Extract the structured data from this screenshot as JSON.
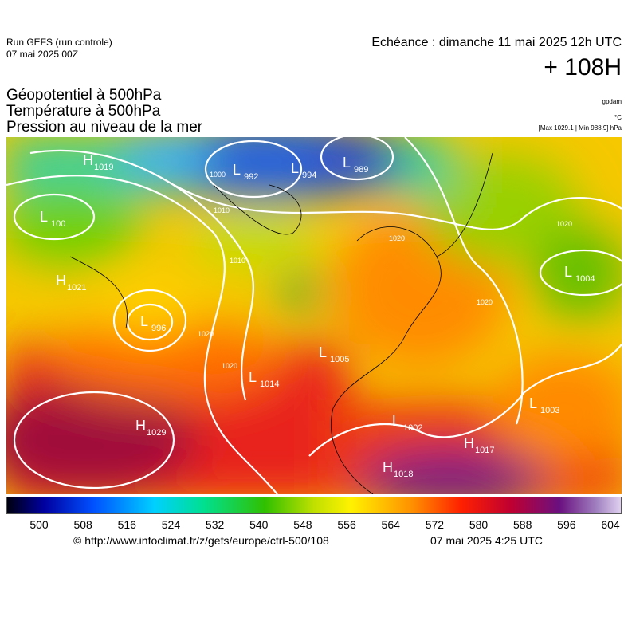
{
  "header": {
    "run": "Run GEFS (run controle)",
    "run_date": "07 mai 2025 00Z",
    "echeance": "Echéance : dimanche 11 mai 2025 12h UTC",
    "lead": "+ 108H",
    "titles": [
      "Géopotentiel à 500hPa",
      "Température à 500hPa",
      "Pression au niveau de la mer"
    ],
    "units": [
      "gpdam",
      "°C",
      "[Max 1029.1 | Min 988.9] hPa"
    ]
  },
  "map": {
    "centers": [
      {
        "letter": "H",
        "value": "1019"
      },
      {
        "letter": "L",
        "value": "992"
      },
      {
        "letter": "L",
        "value": "994"
      },
      {
        "letter": "L",
        "value": "989"
      },
      {
        "letter": "L",
        "value": "100"
      },
      {
        "letter": "H",
        "value": "1021"
      },
      {
        "letter": "L",
        "value": "996"
      },
      {
        "letter": "L",
        "value": "1005"
      },
      {
        "letter": "L",
        "value": "1014"
      },
      {
        "letter": "H",
        "value": "1029"
      },
      {
        "letter": "L",
        "value": "1004"
      },
      {
        "letter": "L",
        "value": "1003"
      },
      {
        "letter": "H",
        "value": "1017"
      },
      {
        "letter": "H",
        "value": "1018"
      },
      {
        "letter": "L",
        "value": "1002"
      }
    ],
    "isobar_labels": [
      "1000",
      "1010",
      "1010",
      "1020",
      "1020",
      "1020",
      "1020",
      "1020"
    ]
  },
  "colorbar": {
    "labels": [
      "500",
      "508",
      "516",
      "524",
      "532",
      "540",
      "548",
      "556",
      "564",
      "572",
      "580",
      "588",
      "596",
      "604"
    ]
  },
  "footer": {
    "url": "© http://www.infoclimat.fr/z/gefs/europe/ctrl-500/108",
    "generated": "07 mai 2025  4:25 UTC"
  }
}
